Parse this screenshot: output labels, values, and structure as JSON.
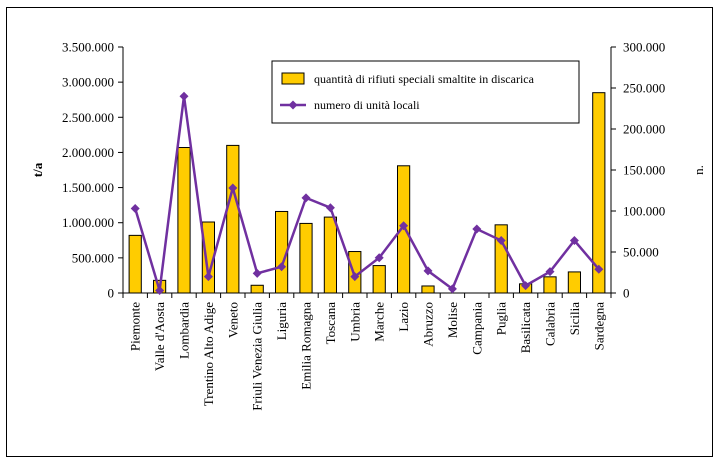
{
  "chart_data": {
    "type": "bar",
    "categories": [
      "Piemonte",
      "Valle d'Aosta",
      "Lombardia",
      "Trentino Alto Adige",
      "Veneto",
      "Friuli Venezia Giulia",
      "Liguria",
      "Emilia Romagna",
      "Toscana",
      "Umbria",
      "Marche",
      "Lazio",
      "Abruzzo",
      "Molise",
      "Campania",
      "Puglia",
      "Basilicata",
      "Calabria",
      "Sicilia",
      "Sardegna"
    ],
    "series": [
      {
        "name": "quantità di rifiuti speciali smaltite in discarica",
        "type": "bar",
        "axis": "left",
        "color": "#FFCC00",
        "values": [
          820000,
          180000,
          2070000,
          1010000,
          2100000,
          110000,
          1160000,
          990000,
          1080000,
          590000,
          390000,
          1810000,
          100000,
          0,
          0,
          970000,
          130000,
          230000,
          300000,
          2850000
        ]
      },
      {
        "name": "numero di unità locali",
        "type": "line",
        "axis": "right",
        "color": "#7030A0",
        "values": [
          103000,
          3000,
          240000,
          20000,
          128000,
          24000,
          32000,
          116000,
          104000,
          20000,
          43000,
          82000,
          27000,
          5000,
          78000,
          64000,
          9000,
          26000,
          64000,
          29000
        ]
      }
    ],
    "y_left": {
      "label": "t/a",
      "ylim": [
        0,
        3500000
      ],
      "tick_labels": [
        "0",
        "500.000",
        "1.000.000",
        "1.500.000",
        "2.000.000",
        "2.500.000",
        "3.000.000",
        "3.500.000"
      ]
    },
    "y_right": {
      "label": "n.",
      "ylim": [
        0,
        300000
      ],
      "tick_labels": [
        "0",
        "50.000",
        "100.000",
        "150.000",
        "200.000",
        "250.000",
        "300.000"
      ]
    },
    "legend_position": "top-right",
    "grid": false
  }
}
